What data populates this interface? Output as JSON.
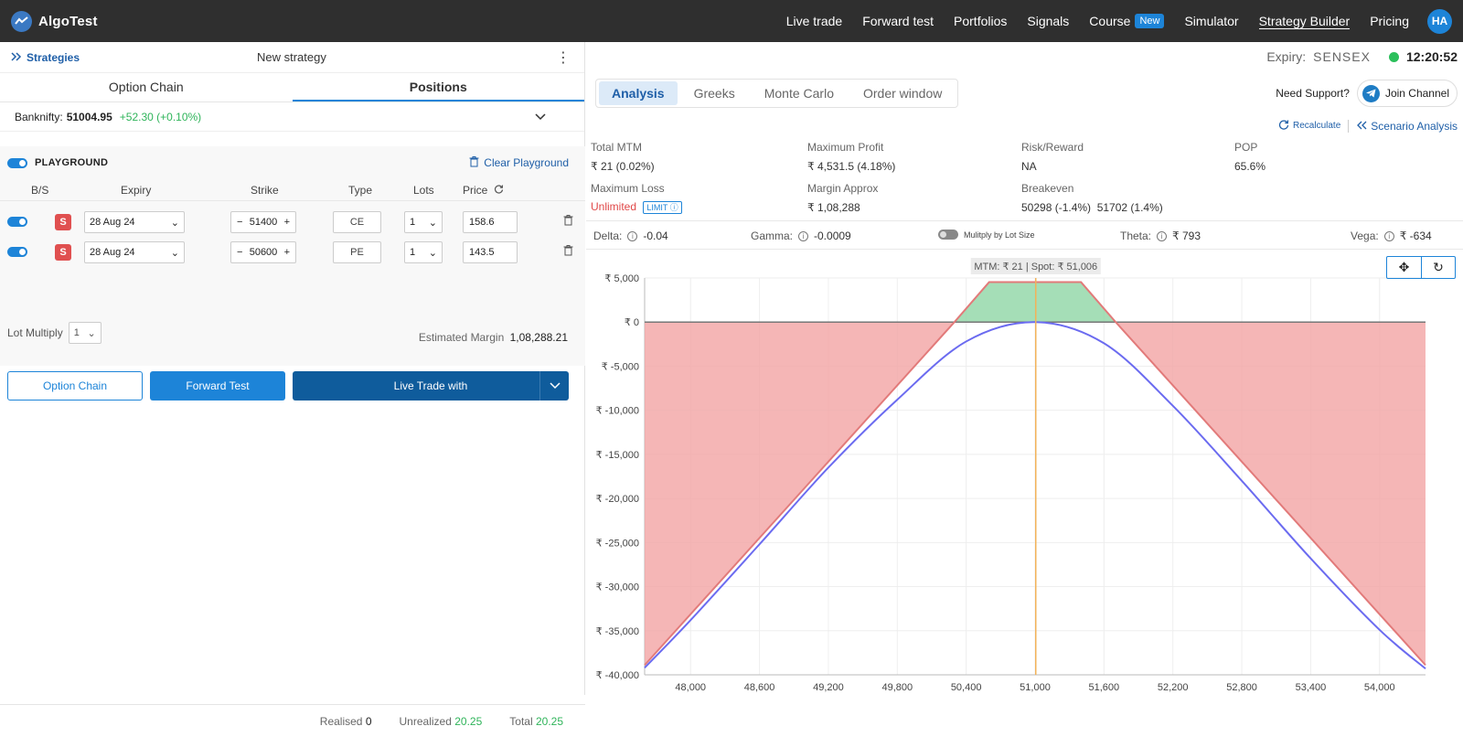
{
  "nav": {
    "brand": "AlgoTest",
    "links": [
      "Live trade",
      "Forward test",
      "Portfolios",
      "Signals",
      "Course",
      "Simulator",
      "Strategy Builder",
      "Pricing"
    ],
    "new_badge": "New",
    "avatar": "HA"
  },
  "left": {
    "strategies_link": "Strategies",
    "title": "New strategy",
    "tabs": [
      "Option Chain",
      "Positions"
    ],
    "index_label": "Banknifty:",
    "index_value": "51004.95",
    "index_change": "+52.30 (+0.10%)",
    "playground_label": "PLAYGROUND",
    "clear_label": "Clear Playground",
    "columns": [
      "B/S",
      "Expiry",
      "Strike",
      "Type",
      "Lots",
      "Price"
    ],
    "legs": [
      {
        "side": "S",
        "expiry": "28 Aug 24",
        "strike": "51400",
        "type": "CE",
        "lots": "1",
        "price": "158.6"
      },
      {
        "side": "S",
        "expiry": "28 Aug 24",
        "strike": "50600",
        "type": "PE",
        "lots": "1",
        "price": "143.5"
      }
    ],
    "lot_multiply_label": "Lot Multiply",
    "lot_multiply_value": "1",
    "est_margin_label": "Estimated Margin",
    "est_margin_value": "1,08,288.21",
    "buttons": {
      "option_chain": "Option Chain",
      "forward_test": "Forward Test",
      "live_trade": "Live Trade with"
    },
    "footer": {
      "realised_label": "Realised",
      "realised": "0",
      "unrealized_label": "Unrealized",
      "unrealized": "20.25",
      "total_label": "Total",
      "total": "20.25"
    }
  },
  "right": {
    "expiry_label": "Expiry:",
    "expiry_value": "SENSEX",
    "clock": "12:20:52",
    "tabs": [
      "Analysis",
      "Greeks",
      "Monte Carlo",
      "Order window"
    ],
    "support_label": "Need Support?",
    "join_label": "Join Channel",
    "recalc_label": "Recalculate",
    "scenario_label": "Scenario Analysis",
    "stats": {
      "total_mtm_label": "Total MTM",
      "total_mtm": "₹ 21 (0.02%)",
      "max_profit_label": "Maximum Profit",
      "max_profit": "₹ 4,531.5 (4.18%)",
      "rr_label": "Risk/Reward",
      "rr": "NA",
      "pop_label": "POP",
      "pop": "65.6%",
      "max_loss_label": "Maximum Loss",
      "max_loss": "Unlimited",
      "limit_label": "LIMIT",
      "margin_label": "Margin Approx",
      "margin": "₹ 1,08,288",
      "breakeven_label": "Breakeven",
      "breakeven": "50298 (-1.4%)  51702 (1.4%)"
    },
    "greeks": {
      "delta_label": "Delta:",
      "delta": "-0.04",
      "gamma_label": "Gamma:",
      "gamma": "-0.0009",
      "multiply_label": "Mulitply by Lot Size",
      "theta_label": "Theta:",
      "theta": "₹ 793",
      "vega_label": "Vega:",
      "vega": "₹ -634"
    }
  },
  "chart_data": {
    "type": "area",
    "tooltip": "MTM: ₹ 21  |  Spot: ₹ 51,006",
    "x_ticks": [
      48000,
      48600,
      49200,
      49800,
      50400,
      51000,
      51600,
      52200,
      52800,
      53400,
      54000
    ],
    "x_tick_labels": [
      "48,000",
      "48,600",
      "49,200",
      "49,800",
      "50,400",
      "51,000",
      "51,600",
      "52,200",
      "52,800",
      "53,400",
      "54,000"
    ],
    "y_ticks": [
      5000,
      0,
      -5000,
      -10000,
      -15000,
      -20000,
      -25000,
      -30000,
      -35000,
      -40000
    ],
    "y_tick_labels": [
      "₹ 5,000",
      "₹ 0",
      "₹ -5,000",
      "₹ -10,000",
      "₹ -15,000",
      "₹ -20,000",
      "₹ -25,000",
      "₹ -30,000",
      "₹ -35,000",
      "₹ -40,000"
    ],
    "xlim": [
      47600,
      54400
    ],
    "ylim": [
      -40000,
      5000
    ],
    "spot": 51006,
    "expiry_payoff": {
      "x": [
        47600,
        50298,
        50600,
        51400,
        51702,
        54400
      ],
      "y": [
        -38900,
        0,
        4530,
        4530,
        0,
        -38900
      ]
    },
    "target_payoff": {
      "x": [
        47600,
        48000,
        48600,
        49200,
        49800,
        50400,
        51000,
        51600,
        52200,
        52800,
        53400,
        54000,
        54400
      ],
      "y": [
        -39200,
        -33800,
        -25200,
        -16500,
        -8800,
        -2200,
        0,
        -2400,
        -9500,
        -18000,
        -26800,
        -34900,
        -39300
      ]
    },
    "colors": {
      "profit": "#8fd6a5",
      "loss": "#f2a4a4",
      "expiry_line": "#e27a7a",
      "target_line": "#6b6bf0",
      "spot_line": "#f2b35a"
    }
  }
}
